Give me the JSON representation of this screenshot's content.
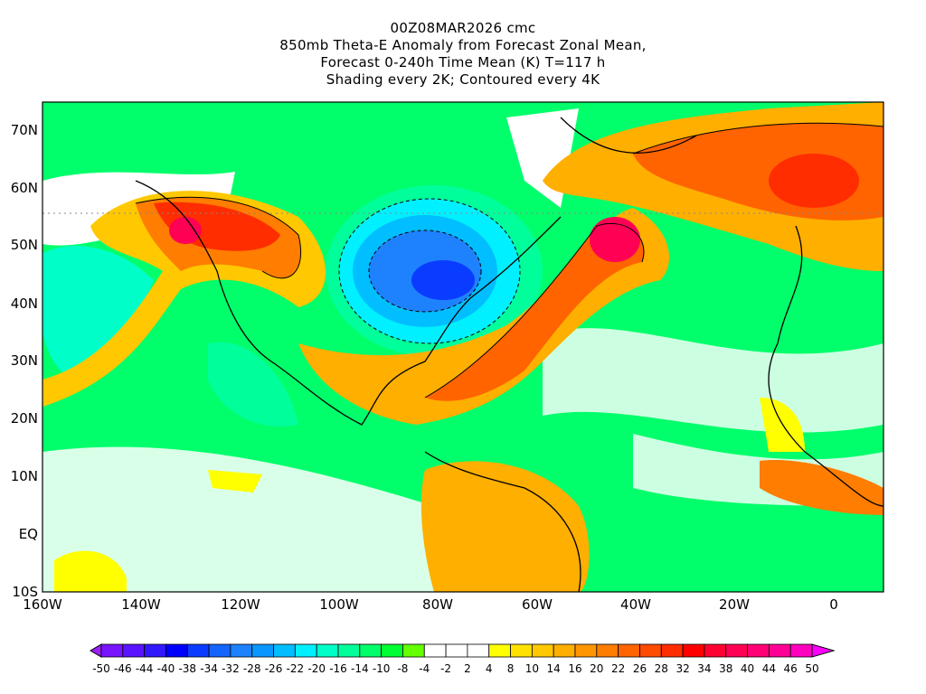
{
  "title": {
    "line1": "00Z08MAR2026 cmc",
    "line2": "850mb Theta-E Anomaly from Forecast Zonal Mean,",
    "line3": "Forecast 0-240h Time Mean (K) T=117 h",
    "line4": "Shading every 2K; Contoured every 4K"
  },
  "map": {
    "lon_range": [
      -160,
      10
    ],
    "lat_range": [
      -10,
      75
    ],
    "lat_labels": [
      "70N",
      "60N",
      "50N",
      "40N",
      "30N",
      "20N",
      "10N",
      "EQ",
      "10S"
    ],
    "lon_labels": [
      "160W",
      "140W",
      "120W",
      "100W",
      "80W",
      "60W",
      "40W",
      "20W",
      "0"
    ]
  },
  "colorbar": {
    "labels": [
      "-50",
      "-46",
      "-44",
      "-40",
      "-38",
      "-34",
      "-32",
      "-28",
      "-26",
      "-22",
      "-20",
      "-16",
      "-14",
      "-10",
      "-8",
      "-4",
      "-2",
      "2",
      "4",
      "8",
      "10",
      "14",
      "16",
      "20",
      "22",
      "26",
      "28",
      "32",
      "34",
      "38",
      "40",
      "44",
      "46",
      "50"
    ],
    "colors": [
      "#9b1ef5",
      "#7814ff",
      "#5a14ff",
      "#3218ff",
      "#0000ff",
      "#0a3cff",
      "#1464ff",
      "#1e82ff",
      "#0a96ff",
      "#00beff",
      "#00f0ff",
      "#00ffc8",
      "#00ff9a",
      "#00ff6a",
      "#00ff32",
      "#64ff00",
      "#ffffff",
      "#ffffff",
      "#ffffff",
      "#ffff00",
      "#ffe100",
      "#ffc800",
      "#ffaf00",
      "#ff9600",
      "#ff7d00",
      "#ff6400",
      "#ff4b00",
      "#ff2d00",
      "#ff0000",
      "#ff0032",
      "#ff0055",
      "#ff0075",
      "#ff0096",
      "#ff00be",
      "#ff00ff"
    ]
  }
}
